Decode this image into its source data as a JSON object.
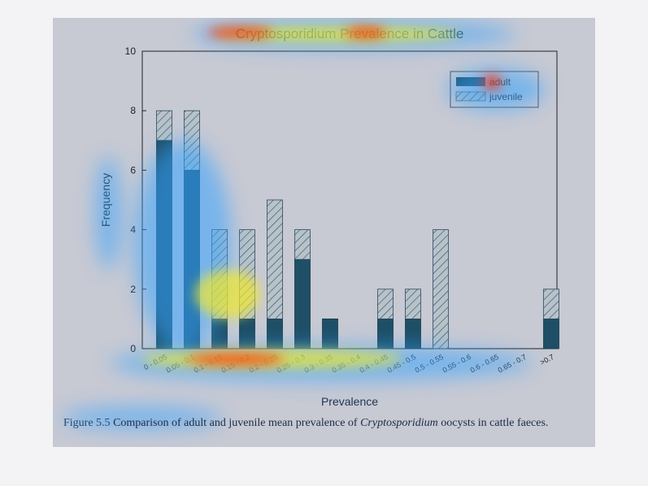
{
  "chart_data": {
    "type": "bar",
    "stacked": true,
    "title": "Cryptosporidium Prevalence in Cattle",
    "xlabel": "Prevalence",
    "ylabel": "Frequency",
    "ylim": [
      0,
      10
    ],
    "yticks": [
      "0",
      "2",
      "4",
      "6",
      "8",
      "10"
    ],
    "categories": [
      "0 - 0.05",
      "0.05 - 0.1",
      "0.1 - 0.15",
      "0.15 - 0.2",
      "0.2 - 0.25",
      "0.25 - 0.3",
      "0.3 - 0.35",
      "0.35 - 0.4",
      "0.4 - 0.45",
      "0.45 - 0.5",
      "0.5 - 0.55",
      "0.55 - 0.6",
      "0.6 - 0.65",
      "0.65 - 0.7",
      ">0.7"
    ],
    "series": [
      {
        "name": "adult",
        "values": [
          7,
          6,
          1,
          1,
          1,
          3,
          1,
          0,
          1,
          1,
          0,
          0,
          0,
          0,
          1
        ]
      },
      {
        "name": "juvenile",
        "values": [
          1,
          2,
          3,
          3,
          4,
          1,
          0,
          0,
          1,
          1,
          4,
          0,
          0,
          0,
          1
        ]
      }
    ],
    "legend_position": "top-right",
    "grid": false
  },
  "caption": {
    "figure_label": "Figure 5.5",
    "text_before": "Comparison of adult and juvenile mean prevalence of",
    "italic_term": "Cryptosporidium",
    "text_after": "oocysts in cattle faeces."
  },
  "colors": {
    "background": "#c7c9d3",
    "adult": "#1e4f66",
    "juvenile_hatch": "#2c4a60",
    "axis": "#222222",
    "heat_hot": "#ff2a00",
    "heat_warm": "#f2ea2a",
    "heat_cool": "#34a3ff"
  }
}
